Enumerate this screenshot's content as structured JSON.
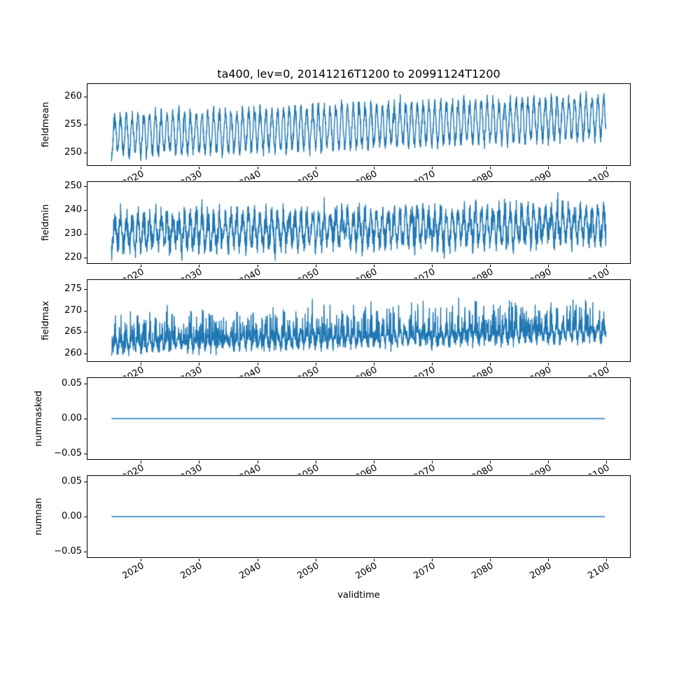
{
  "figure": {
    "background_color": "#ffffff",
    "axis_color": "#000000",
    "line_color": "#1f77b4"
  },
  "chart_data": {
    "type": "line",
    "title": "ta400, lev=0, 20141216T1200 to 20991124T1200",
    "variable": "ta400",
    "level": "lev=0",
    "time_start": "20141216T1200",
    "time_end": "20991124T1200",
    "xlabel": "validtime",
    "x_tick_labels": [
      "2020",
      "2030",
      "2040",
      "2050",
      "2060",
      "2070",
      "2080",
      "2090",
      "2100"
    ],
    "x_tick_values": [
      2020,
      2030,
      2040,
      2050,
      2060,
      2070,
      2080,
      2090,
      2100
    ],
    "xlim": [
      2010.71,
      2104.15
    ],
    "x_data_range": [
      2014.96,
      2099.9
    ],
    "grid": false,
    "legend": false,
    "line_color": "#1f77b4",
    "subplots": [
      {
        "ylabel": "fieldmean",
        "ylim": [
          247.7,
          262.3
        ],
        "yticks": [
          {
            "value": 260,
            "label": "260"
          },
          {
            "value": 255,
            "label": "255"
          },
          {
            "value": 250,
            "label": "250"
          }
        ],
        "data_min": 248.5,
        "data_max": 261.6,
        "model": {
          "kind": "seasonal-noise",
          "trend_start": 253.1,
          "trend_end": 256.3,
          "seasonal_amplitude": 3.4,
          "noise_amplitude": 1.0,
          "samples_per_year": 28,
          "seed": 7,
          "spike_probability": 0.03,
          "spike_scale": 2,
          "spike_sign": 0
        }
      },
      {
        "ylabel": "fieldmin",
        "ylim": [
          217.4,
          252.1
        ],
        "yticks": [
          {
            "value": 250,
            "label": "250"
          },
          {
            "value": 240,
            "label": "240"
          },
          {
            "value": 230,
            "label": "230"
          },
          {
            "value": 220,
            "label": "220"
          }
        ],
        "data_min": 218.9,
        "data_max": 250.3,
        "model": {
          "kind": "seasonal-noise",
          "trend_start": 230.8,
          "trend_end": 233.6,
          "seasonal_amplitude": 6.0,
          "noise_amplitude": 4.0,
          "samples_per_year": 28,
          "seed": 13,
          "spike_probability": 0.06,
          "spike_scale": 7,
          "spike_sign": 0
        }
      },
      {
        "ylabel": "fieldmax",
        "ylim": [
          258.0,
          277.3
        ],
        "yticks": [
          {
            "value": 275,
            "label": "275"
          },
          {
            "value": 270,
            "label": "270"
          },
          {
            "value": 265,
            "label": "265"
          },
          {
            "value": 260,
            "label": "260"
          }
        ],
        "data_min": 258.9,
        "data_max": 276.3,
        "model": {
          "kind": "seasonal-noise",
          "trend_start": 262.2,
          "trend_end": 265.2,
          "seasonal_amplitude": 1.4,
          "noise_amplitude": 1.4,
          "samples_per_year": 28,
          "seed": 29,
          "spike_probability": 0.22,
          "spike_scale": 6.5,
          "spike_sign": 1
        }
      },
      {
        "ylabel": "nummasked",
        "ylim": [
          -0.059,
          0.059
        ],
        "yticks": [
          {
            "value": 0.05,
            "label": "0.05"
          },
          {
            "value": 0,
            "label": "0.00"
          },
          {
            "value": -0.05,
            "label": "−0.05"
          }
        ],
        "data_min": 0,
        "data_max": 0,
        "model": {
          "kind": "constant",
          "value": 0,
          "samples_per_year": 4,
          "seed": 1
        }
      },
      {
        "ylabel": "numnan",
        "ylim": [
          -0.059,
          0.059
        ],
        "yticks": [
          {
            "value": 0.05,
            "label": "0.05"
          },
          {
            "value": 0,
            "label": "0.00"
          },
          {
            "value": -0.05,
            "label": "−0.05"
          }
        ],
        "data_min": 0,
        "data_max": 0,
        "model": {
          "kind": "constant",
          "value": 0,
          "samples_per_year": 4,
          "seed": 2
        }
      }
    ]
  }
}
